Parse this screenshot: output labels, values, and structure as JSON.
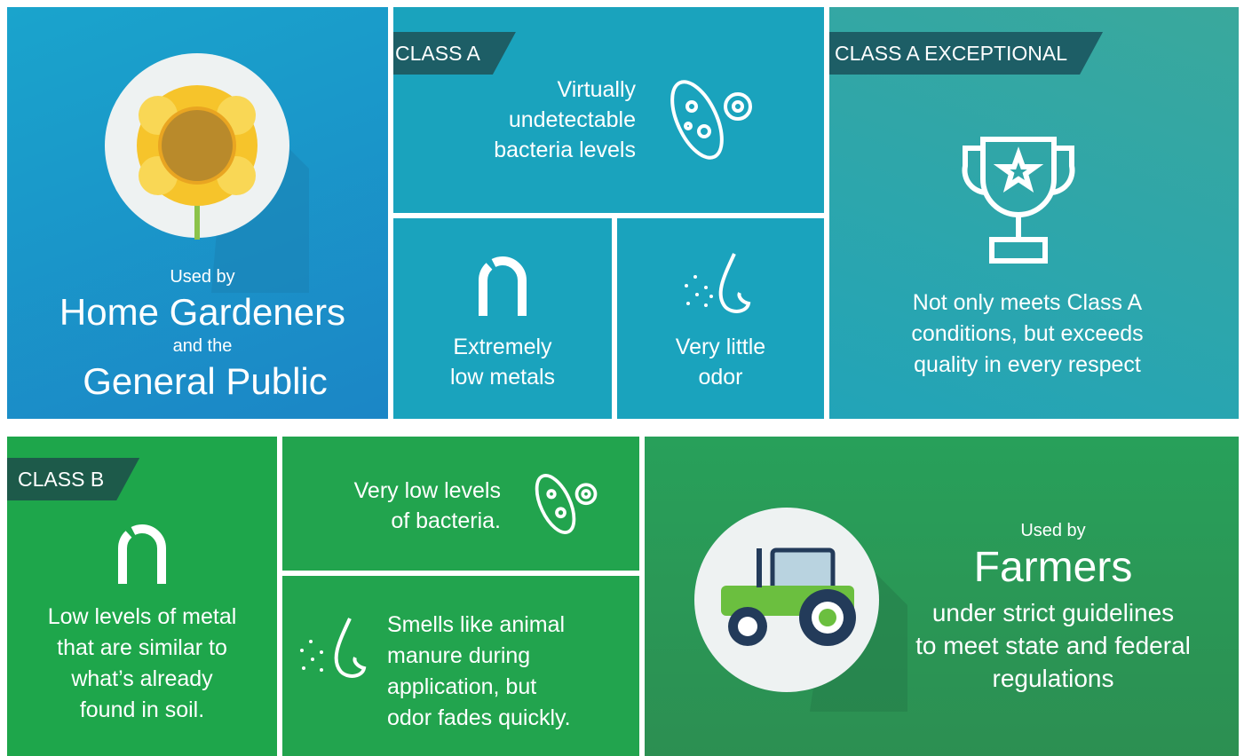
{
  "top": {
    "audience": {
      "used_by": "Used by",
      "primary": "Home Gardeners",
      "connector": "and the",
      "secondary": "General Public"
    },
    "class_a": {
      "label": "CLASS A",
      "bacteria": [
        "Virtually",
        "undetectable",
        "bacteria levels"
      ],
      "metals": [
        "Extremely",
        "low metals"
      ],
      "odor": [
        "Very little",
        "odor"
      ]
    },
    "class_a_exceptional": {
      "label": "CLASS A EXCEPTIONAL",
      "description": [
        "Not only meets Class A",
        "conditions, but exceeds",
        "quality in every respect"
      ]
    }
  },
  "bottom": {
    "class_b": {
      "label": "CLASS B",
      "metals": [
        "Low levels of metal",
        "that are similar to",
        "what’s already",
        "found in soil."
      ],
      "bacteria": [
        "Very low levels",
        "of bacteria."
      ],
      "odor": [
        "Smells like animal",
        "manure during",
        "application, but",
        "odor fades quickly."
      ]
    },
    "audience": {
      "used_by": "Used by",
      "primary": "Farmers",
      "secondary": [
        "under strict guidelines",
        "to meet state and federal",
        "regulations"
      ]
    }
  }
}
